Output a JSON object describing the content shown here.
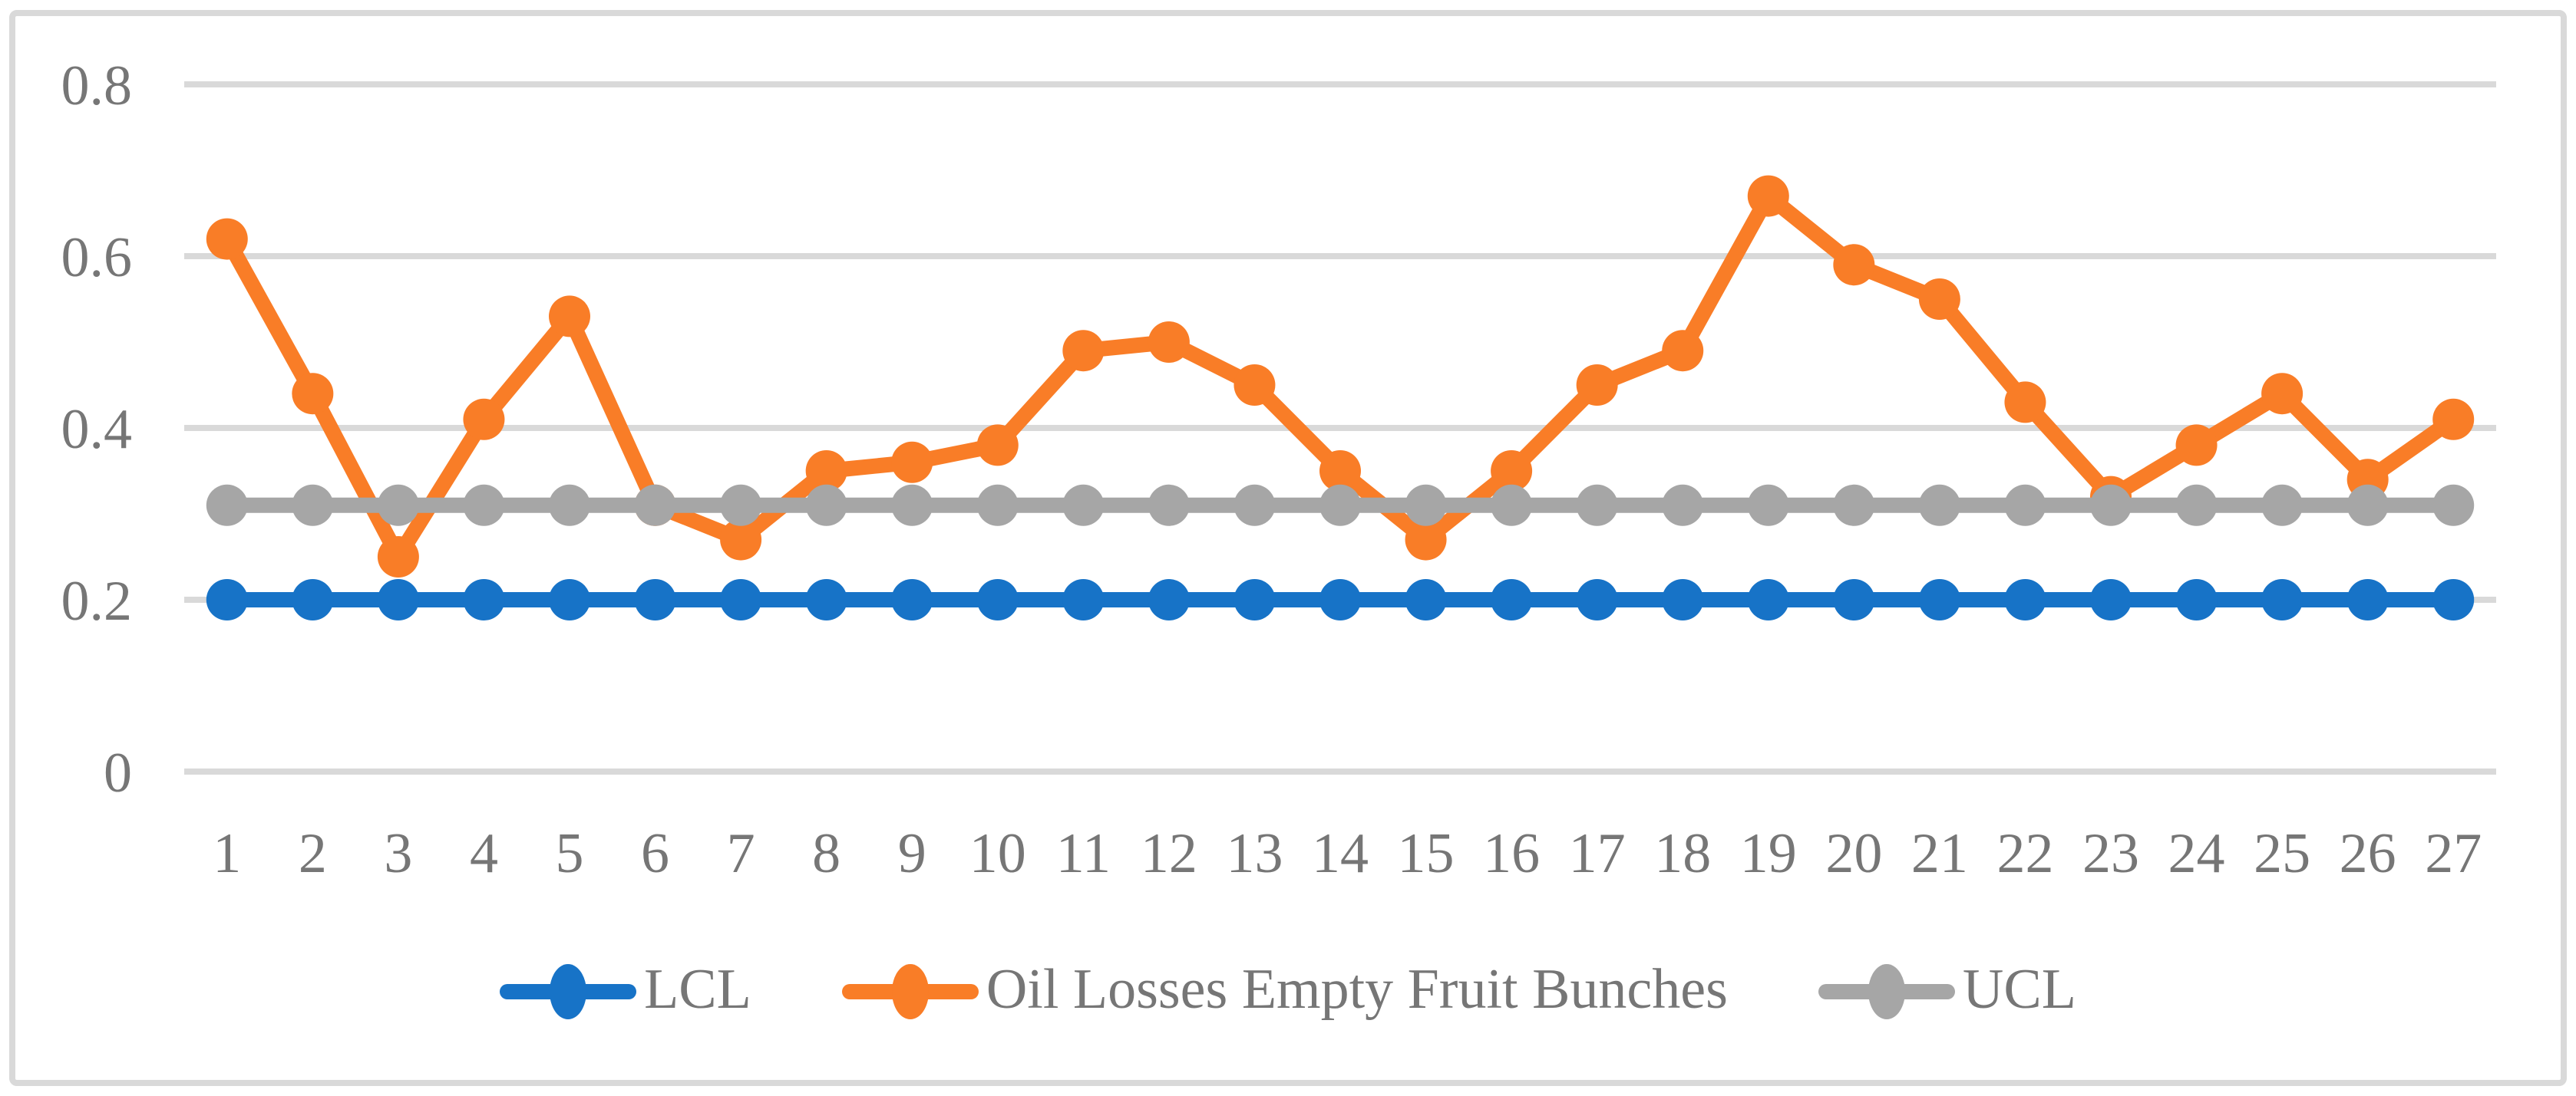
{
  "chart_data": {
    "type": "line",
    "title": "",
    "xlabel": "",
    "ylabel": "",
    "categories": [
      1,
      2,
      3,
      4,
      5,
      6,
      7,
      8,
      9,
      10,
      11,
      12,
      13,
      14,
      15,
      16,
      17,
      18,
      19,
      20,
      21,
      22,
      23,
      24,
      25,
      26,
      27
    ],
    "series": [
      {
        "name": "LCL",
        "color": "#1773C7",
        "values": [
          0.2,
          0.2,
          0.2,
          0.2,
          0.2,
          0.2,
          0.2,
          0.2,
          0.2,
          0.2,
          0.2,
          0.2,
          0.2,
          0.2,
          0.2,
          0.2,
          0.2,
          0.2,
          0.2,
          0.2,
          0.2,
          0.2,
          0.2,
          0.2,
          0.2,
          0.2,
          0.2
        ]
      },
      {
        "name": "Oil Losses Empty Fruit Bunches",
        "color": "#F97D27",
        "values": [
          0.62,
          0.44,
          0.25,
          0.41,
          0.53,
          0.31,
          0.27,
          0.35,
          0.36,
          0.38,
          0.49,
          0.5,
          0.45,
          0.35,
          0.27,
          0.35,
          0.45,
          0.49,
          0.67,
          0.59,
          0.55,
          0.43,
          0.32,
          0.38,
          0.44,
          0.34,
          0.41
        ]
      },
      {
        "name": "UCL",
        "color": "#A6A6A6",
        "values": [
          0.31,
          0.31,
          0.31,
          0.31,
          0.31,
          0.31,
          0.31,
          0.31,
          0.31,
          0.31,
          0.31,
          0.31,
          0.31,
          0.31,
          0.31,
          0.31,
          0.31,
          0.31,
          0.31,
          0.31,
          0.31,
          0.31,
          0.31,
          0.31,
          0.31,
          0.31,
          0.31
        ]
      }
    ],
    "ylim": [
      0,
      0.8
    ],
    "yticks": [
      0,
      0.2,
      0.4,
      0.6,
      0.8
    ],
    "ytick_labels": [
      "0",
      "0.2",
      "0.4",
      "0.6",
      "0.8"
    ],
    "grid": true,
    "gridline_color": "#D9D9D9",
    "frame_color": "#D9D9D9",
    "axis_text_color": "#767676",
    "background_color": "#FFFFFF",
    "legend_position": "bottom",
    "legend_entries": [
      "LCL",
      "Oil Losses Empty Fruit Bunches",
      "UCL"
    ]
  }
}
